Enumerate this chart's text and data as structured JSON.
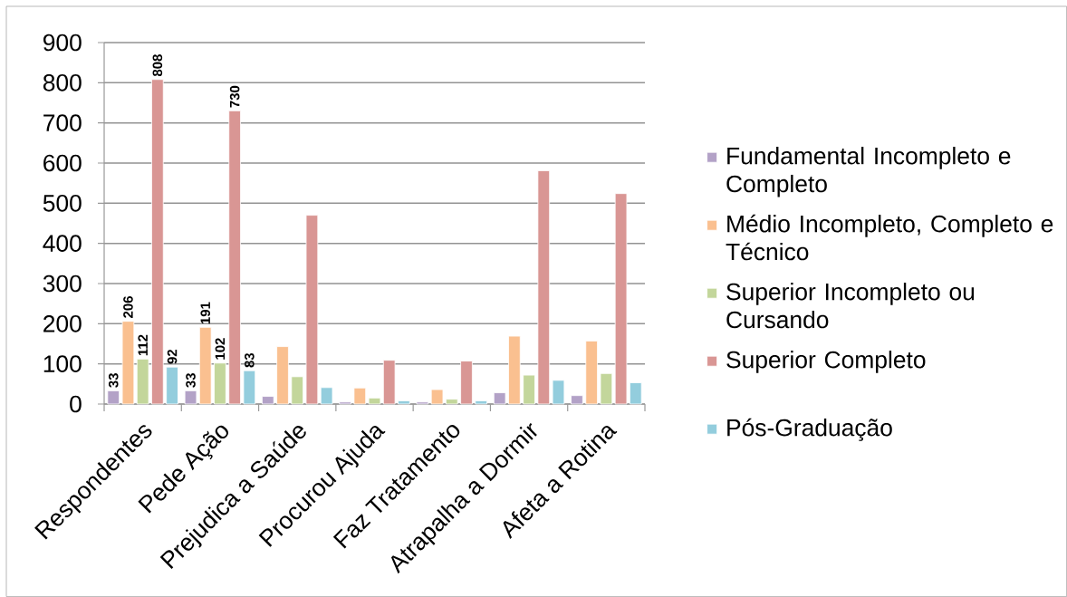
{
  "chart_data": {
    "type": "bar",
    "categories": [
      "Respondentes",
      "Pede Ação",
      "Prejudica a Saúde",
      "Procurou Ajuda",
      "Faz Tratamento",
      "Atrapalha a Dormir",
      "Afeta a Rotina"
    ],
    "series": [
      {
        "name": "Fundamental Incompleto e Completo",
        "color": "#b3a2c7",
        "values": [
          33,
          33,
          19,
          5,
          5,
          28,
          21
        ],
        "value_labels": [
          "33",
          "33",
          null,
          null,
          null,
          null,
          null
        ]
      },
      {
        "name": "Médio Incompleto, Completo e Técnico",
        "color": "#fac090",
        "values": [
          206,
          191,
          143,
          40,
          36,
          169,
          157
        ],
        "value_labels": [
          "206",
          "191",
          null,
          null,
          null,
          null,
          null
        ]
      },
      {
        "name": "Superior Incompleto ou Cursando",
        "color": "#c3d69b",
        "values": [
          112,
          102,
          68,
          15,
          12,
          72,
          76
        ],
        "value_labels": [
          "112",
          "102",
          null,
          null,
          null,
          null,
          null
        ]
      },
      {
        "name": "Superior Completo",
        "color": "#d99694",
        "values": [
          808,
          730,
          470,
          109,
          107,
          581,
          524
        ],
        "value_labels": [
          "808",
          "730",
          null,
          null,
          null,
          null,
          null
        ]
      },
      {
        "name": "Pós-Graduação",
        "color": "#93cddd",
        "values": [
          92,
          83,
          41,
          8,
          8,
          59,
          53
        ],
        "value_labels": [
          "92",
          "83",
          null,
          null,
          null,
          null,
          null
        ]
      }
    ],
    "ylim": [
      0,
      900
    ],
    "yticks": [
      0,
      100,
      200,
      300,
      400,
      500,
      600,
      700,
      800,
      900
    ],
    "grid": "y",
    "legend": "right"
  }
}
